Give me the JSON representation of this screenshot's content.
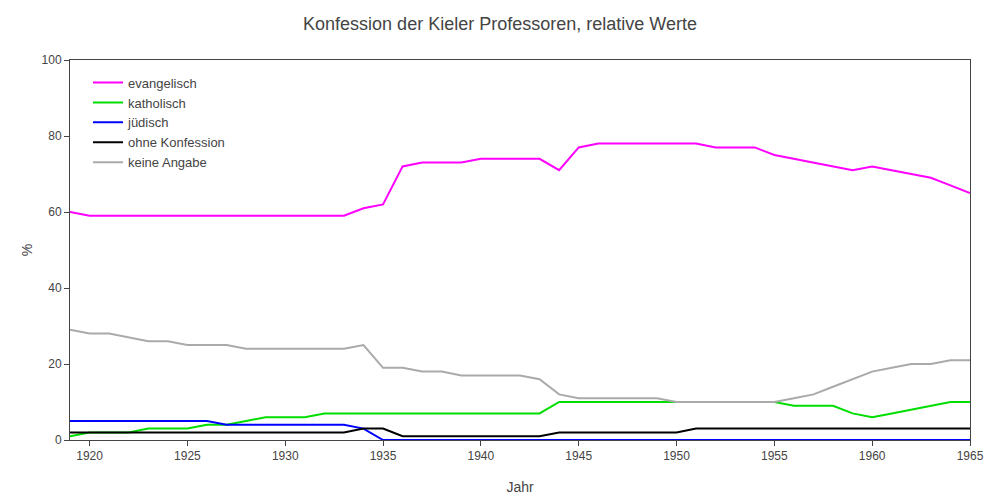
{
  "chart_data": {
    "type": "line",
    "title": "Konfession der Kieler Professoren, relative Werte",
    "x_label": "Jahr",
    "y_label": "%",
    "x": [
      1919,
      1920,
      1921,
      1922,
      1923,
      1924,
      1925,
      1926,
      1927,
      1928,
      1929,
      1930,
      1931,
      1932,
      1933,
      1934,
      1935,
      1936,
      1937,
      1938,
      1939,
      1940,
      1941,
      1942,
      1943,
      1944,
      1945,
      1946,
      1947,
      1948,
      1949,
      1950,
      1951,
      1952,
      1953,
      1954,
      1955,
      1956,
      1957,
      1958,
      1959,
      1960,
      1961,
      1962,
      1963,
      1964,
      1965
    ],
    "series": [
      {
        "name": "evangelisch",
        "color": "magenta",
        "values": [
          60,
          59,
          59,
          59,
          59,
          59,
          59,
          59,
          59,
          59,
          59,
          59,
          59,
          59,
          59,
          61,
          62,
          72,
          73,
          73,
          73,
          74,
          74,
          74,
          74,
          71,
          77,
          78,
          78,
          78,
          78,
          78,
          78,
          77,
          77,
          77,
          75,
          74,
          73,
          72,
          71,
          72,
          71,
          70,
          69,
          67,
          65
        ]
      },
      {
        "name": "katholisch",
        "color": "#00dd00",
        "values": [
          1,
          2,
          2,
          2,
          3,
          3,
          3,
          4,
          4,
          5,
          6,
          6,
          6,
          7,
          7,
          7,
          7,
          7,
          7,
          7,
          7,
          7,
          7,
          7,
          7,
          10,
          10,
          10,
          10,
          10,
          10,
          10,
          10,
          10,
          10,
          10,
          10,
          9,
          9,
          9,
          7,
          6,
          7,
          8,
          9,
          10,
          10
        ]
      },
      {
        "name": "jüdisch",
        "color": "blue",
        "values": [
          5,
          5,
          5,
          5,
          5,
          5,
          5,
          5,
          4,
          4,
          4,
          4,
          4,
          4,
          4,
          3,
          0,
          0,
          0,
          0,
          0,
          0,
          0,
          0,
          0,
          0,
          0,
          0,
          0,
          0,
          0,
          0,
          0,
          0,
          0,
          0,
          0,
          0,
          0,
          0,
          0,
          0,
          0,
          0,
          0,
          0,
          0
        ]
      },
      {
        "name": "ohne Konfession",
        "color": "black",
        "values": [
          2,
          2,
          2,
          2,
          2,
          2,
          2,
          2,
          2,
          2,
          2,
          2,
          2,
          2,
          2,
          3,
          3,
          1,
          1,
          1,
          1,
          1,
          1,
          1,
          1,
          2,
          2,
          2,
          2,
          2,
          2,
          2,
          3,
          3,
          3,
          3,
          3,
          3,
          3,
          3,
          3,
          3,
          3,
          3,
          3,
          3,
          3
        ]
      },
      {
        "name": "keine Angabe",
        "color": "#aaaaaa",
        "values": [
          29,
          28,
          28,
          27,
          26,
          26,
          25,
          25,
          25,
          24,
          24,
          24,
          24,
          24,
          24,
          25,
          19,
          19,
          18,
          18,
          17,
          17,
          17,
          17,
          16,
          12,
          11,
          11,
          11,
          11,
          11,
          10,
          10,
          10,
          10,
          10,
          10,
          11,
          12,
          14,
          16,
          18,
          19,
          20,
          20,
          21,
          21
        ]
      }
    ],
    "xlim": [
      1919,
      1965
    ],
    "xticks": [
      1920,
      1925,
      1930,
      1935,
      1940,
      1945,
      1950,
      1955,
      1960,
      1965
    ],
    "ylim": [
      0,
      100
    ],
    "yticks": [
      0,
      20,
      40,
      60,
      80,
      100
    ],
    "grid": false,
    "legend": "upper left"
  }
}
